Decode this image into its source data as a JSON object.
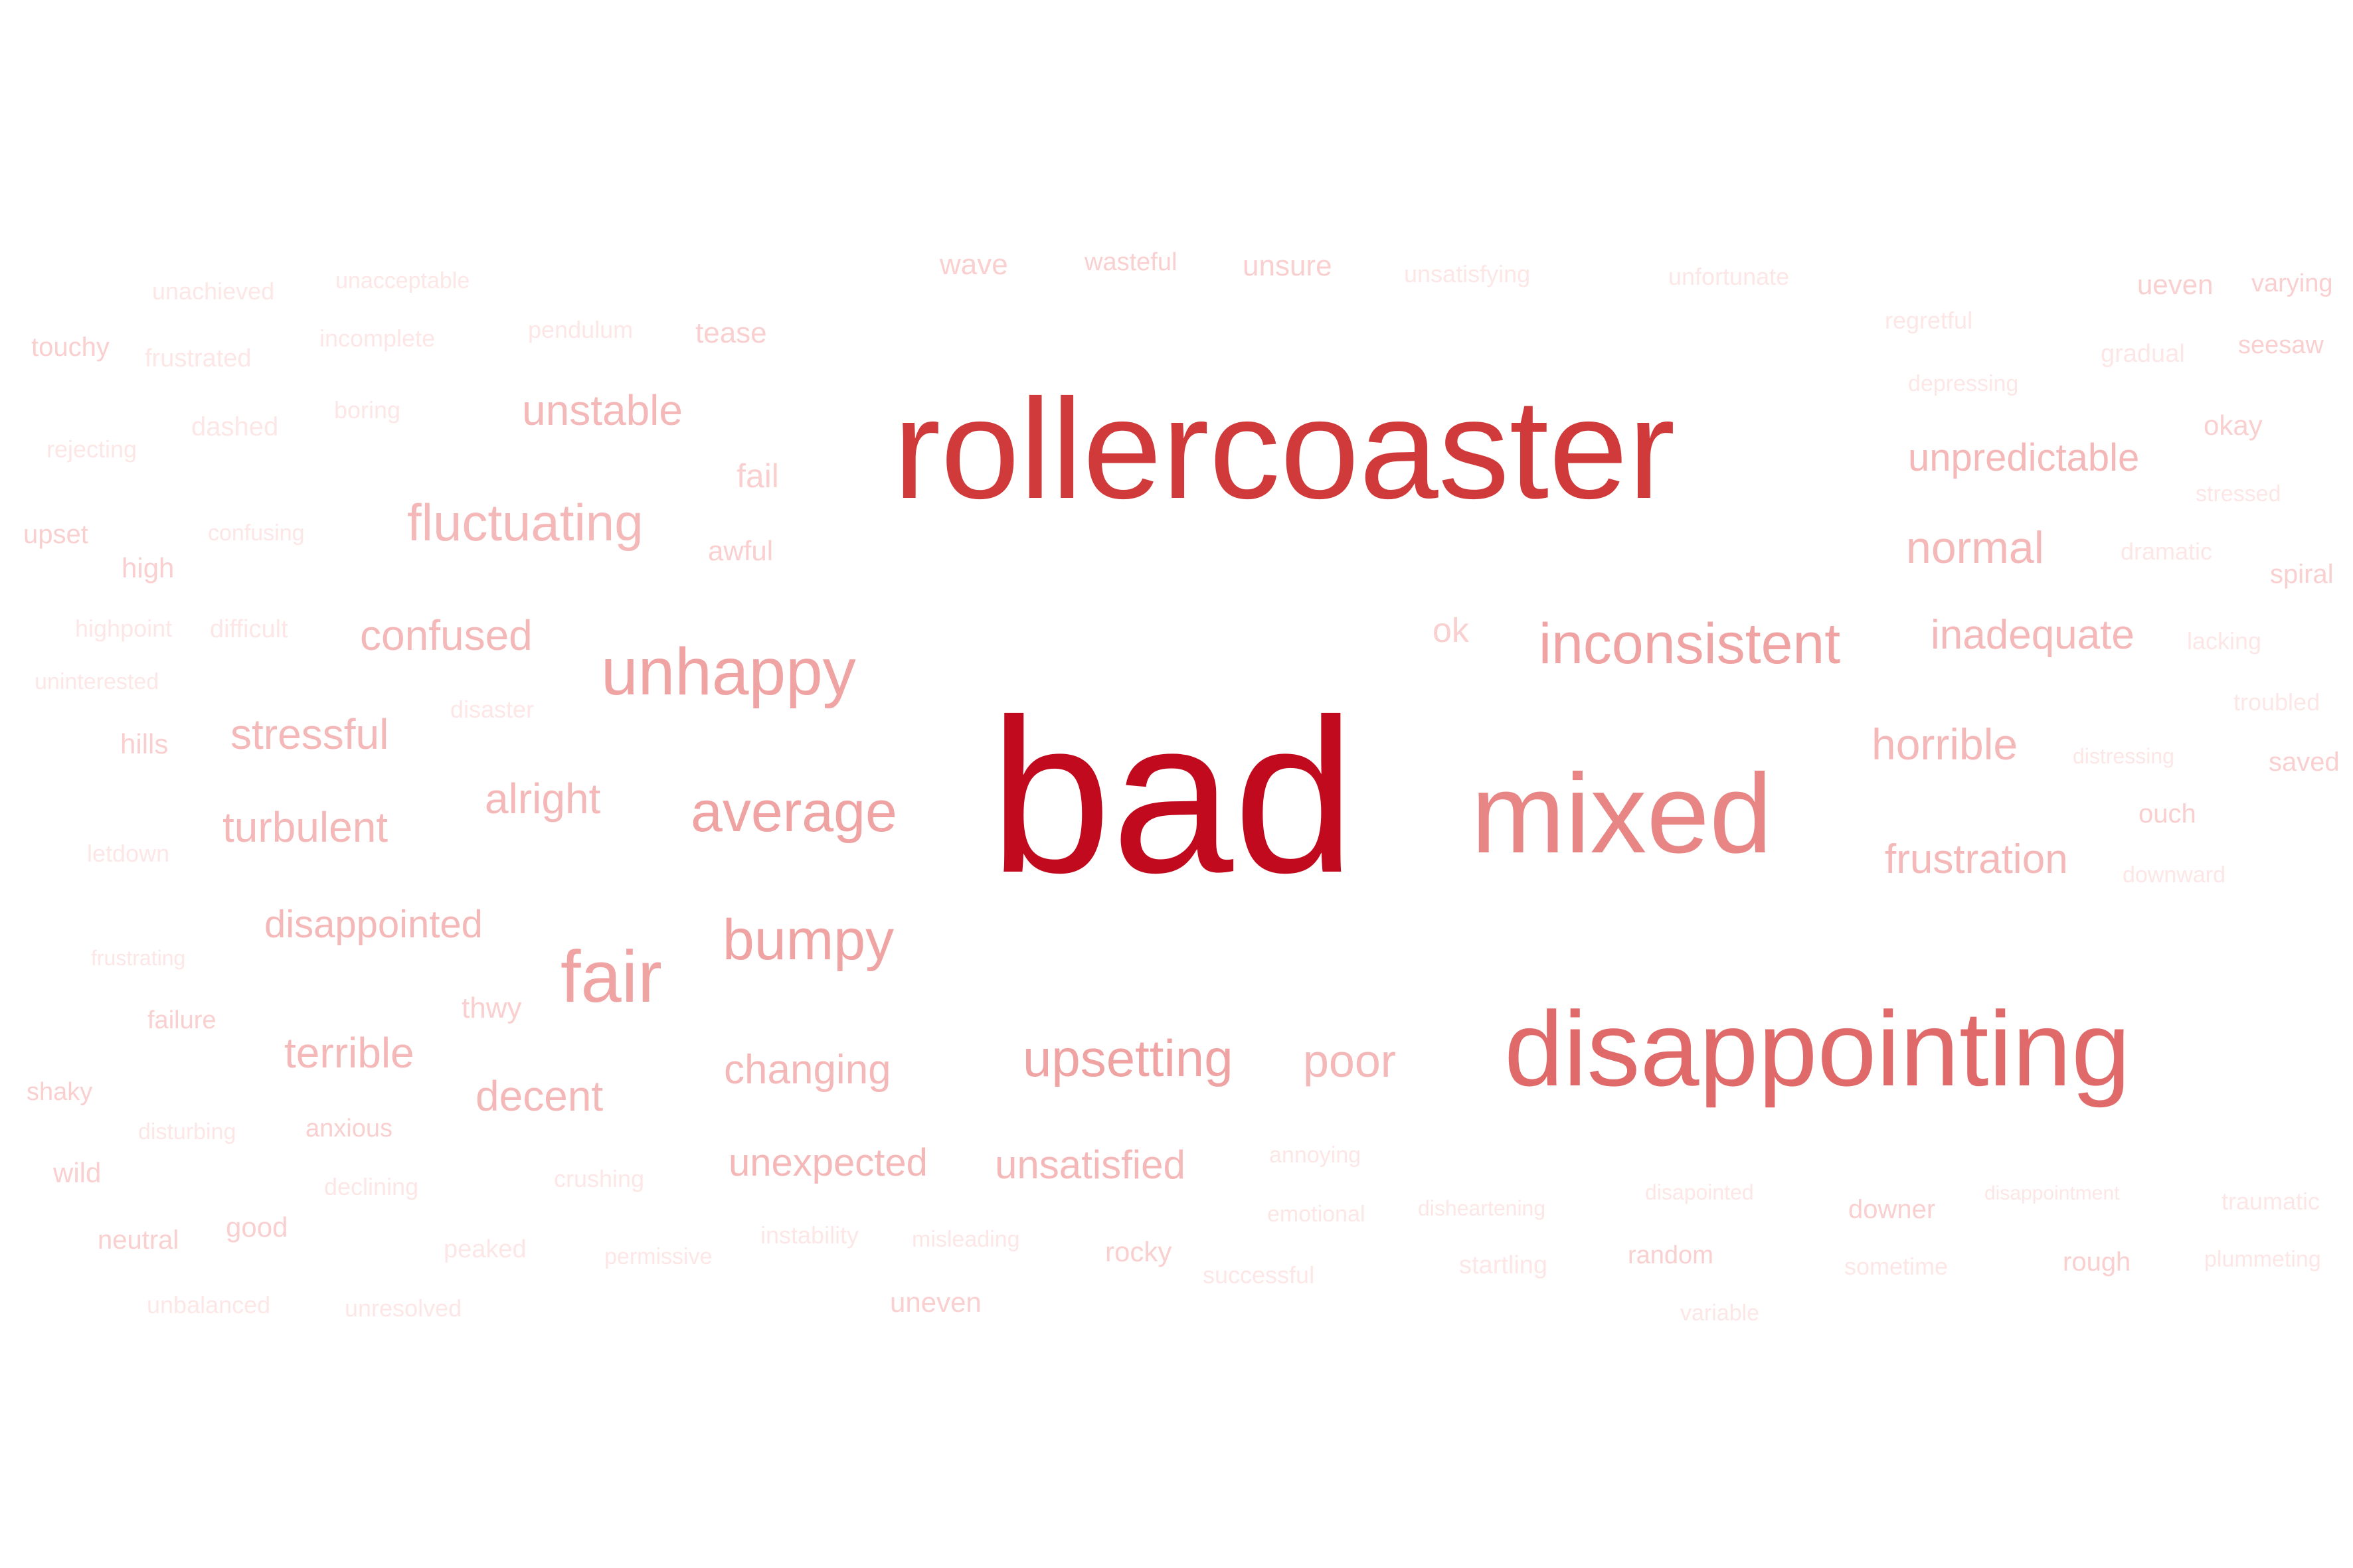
{
  "colors": {
    "background": "#ffffff",
    "tiers": [
      "#fde6e6",
      "#f9cfcf",
      "#f5b8b8",
      "#efa3a3",
      "#e88585",
      "#e06a6a",
      "#d13a3a",
      "#c20a1e"
    ]
  },
  "words": [
    {
      "text": "bad",
      "weight": 8
    },
    {
      "text": "rollercoaster",
      "weight": 7
    },
    {
      "text": "disappointing",
      "weight": 6
    },
    {
      "text": "mixed",
      "weight": 5
    },
    {
      "text": "unhappy",
      "weight": 4
    },
    {
      "text": "inconsistent",
      "weight": 4
    },
    {
      "text": "fair",
      "weight": 4
    },
    {
      "text": "average",
      "weight": 4
    },
    {
      "text": "bumpy",
      "weight": 4
    },
    {
      "text": "upsetting",
      "weight": 4
    },
    {
      "text": "fluctuating",
      "weight": 3
    },
    {
      "text": "unstable",
      "weight": 3
    },
    {
      "text": "unpredictable",
      "weight": 3
    },
    {
      "text": "normal",
      "weight": 3
    },
    {
      "text": "inadequate",
      "weight": 3
    },
    {
      "text": "confused",
      "weight": 3
    },
    {
      "text": "stressful",
      "weight": 3
    },
    {
      "text": "turbulent",
      "weight": 3
    },
    {
      "text": "alright",
      "weight": 3
    },
    {
      "text": "horrible",
      "weight": 3
    },
    {
      "text": "frustration",
      "weight": 3
    },
    {
      "text": "disappointed",
      "weight": 3
    },
    {
      "text": "terrible",
      "weight": 3
    },
    {
      "text": "decent",
      "weight": 3
    },
    {
      "text": "changing",
      "weight": 3
    },
    {
      "text": "poor",
      "weight": 3
    },
    {
      "text": "unexpected",
      "weight": 3
    },
    {
      "text": "unsatisfied",
      "weight": 3
    },
    {
      "text": "wave",
      "weight": 2
    },
    {
      "text": "wasteful",
      "weight": 2
    },
    {
      "text": "unsure",
      "weight": 2
    },
    {
      "text": "unsatisfying",
      "weight": 1
    },
    {
      "text": "unfortunate",
      "weight": 1
    },
    {
      "text": "ueven",
      "weight": 2
    },
    {
      "text": "varying",
      "weight": 2
    },
    {
      "text": "unachieved",
      "weight": 1
    },
    {
      "text": "unacceptable",
      "weight": 1
    },
    {
      "text": "touchy",
      "weight": 2
    },
    {
      "text": "frustrated",
      "weight": 1
    },
    {
      "text": "incomplete",
      "weight": 1
    },
    {
      "text": "pendulum",
      "weight": 1
    },
    {
      "text": "tease",
      "weight": 2
    },
    {
      "text": "regretful",
      "weight": 1
    },
    {
      "text": "gradual",
      "weight": 1
    },
    {
      "text": "seesaw",
      "weight": 2
    },
    {
      "text": "depressing",
      "weight": 1
    },
    {
      "text": "dashed",
      "weight": 1
    },
    {
      "text": "boring",
      "weight": 1
    },
    {
      "text": "rejecting",
      "weight": 1
    },
    {
      "text": "okay",
      "weight": 2
    },
    {
      "text": "fail",
      "weight": 2
    },
    {
      "text": "stressed",
      "weight": 1
    },
    {
      "text": "upset",
      "weight": 2
    },
    {
      "text": "confusing",
      "weight": 1
    },
    {
      "text": "awful",
      "weight": 2
    },
    {
      "text": "dramatic",
      "weight": 1
    },
    {
      "text": "high",
      "weight": 2
    },
    {
      "text": "spiral",
      "weight": 2
    },
    {
      "text": "highpoint",
      "weight": 1
    },
    {
      "text": "difficult",
      "weight": 1
    },
    {
      "text": "ok",
      "weight": 2
    },
    {
      "text": "lacking",
      "weight": 1
    },
    {
      "text": "uninterested",
      "weight": 1
    },
    {
      "text": "disaster",
      "weight": 1
    },
    {
      "text": "troubled",
      "weight": 1
    },
    {
      "text": "hills",
      "weight": 2
    },
    {
      "text": "distressing",
      "weight": 1
    },
    {
      "text": "saved",
      "weight": 2
    },
    {
      "text": "ouch",
      "weight": 2
    },
    {
      "text": "letdown",
      "weight": 1
    },
    {
      "text": "downward",
      "weight": 1
    },
    {
      "text": "frustrating",
      "weight": 1
    },
    {
      "text": "thwy",
      "weight": 2
    },
    {
      "text": "failure",
      "weight": 2
    },
    {
      "text": "shaky",
      "weight": 2
    },
    {
      "text": "disturbing",
      "weight": 1
    },
    {
      "text": "anxious",
      "weight": 2
    },
    {
      "text": "annoying",
      "weight": 1
    },
    {
      "text": "wild",
      "weight": 2
    },
    {
      "text": "declining",
      "weight": 1
    },
    {
      "text": "crushing",
      "weight": 1
    },
    {
      "text": "disapointed",
      "weight": 1
    },
    {
      "text": "disappointment",
      "weight": 1
    },
    {
      "text": "traumatic",
      "weight": 1
    },
    {
      "text": "emotional",
      "weight": 1
    },
    {
      "text": "disheartening",
      "weight": 1
    },
    {
      "text": "downer",
      "weight": 2
    },
    {
      "text": "neutral",
      "weight": 2
    },
    {
      "text": "good",
      "weight": 2
    },
    {
      "text": "instability",
      "weight": 1
    },
    {
      "text": "misleading",
      "weight": 1
    },
    {
      "text": "peaked",
      "weight": 1
    },
    {
      "text": "permissive",
      "weight": 1
    },
    {
      "text": "rocky",
      "weight": 2
    },
    {
      "text": "random",
      "weight": 2
    },
    {
      "text": "rough",
      "weight": 2
    },
    {
      "text": "plummeting",
      "weight": 1
    },
    {
      "text": "startling",
      "weight": 1
    },
    {
      "text": "sometime",
      "weight": 1
    },
    {
      "text": "successful",
      "weight": 1
    },
    {
      "text": "unbalanced",
      "weight": 1
    },
    {
      "text": "unresolved",
      "weight": 1
    },
    {
      "text": "uneven",
      "weight": 2
    },
    {
      "text": "variable",
      "weight": 1
    }
  ]
}
